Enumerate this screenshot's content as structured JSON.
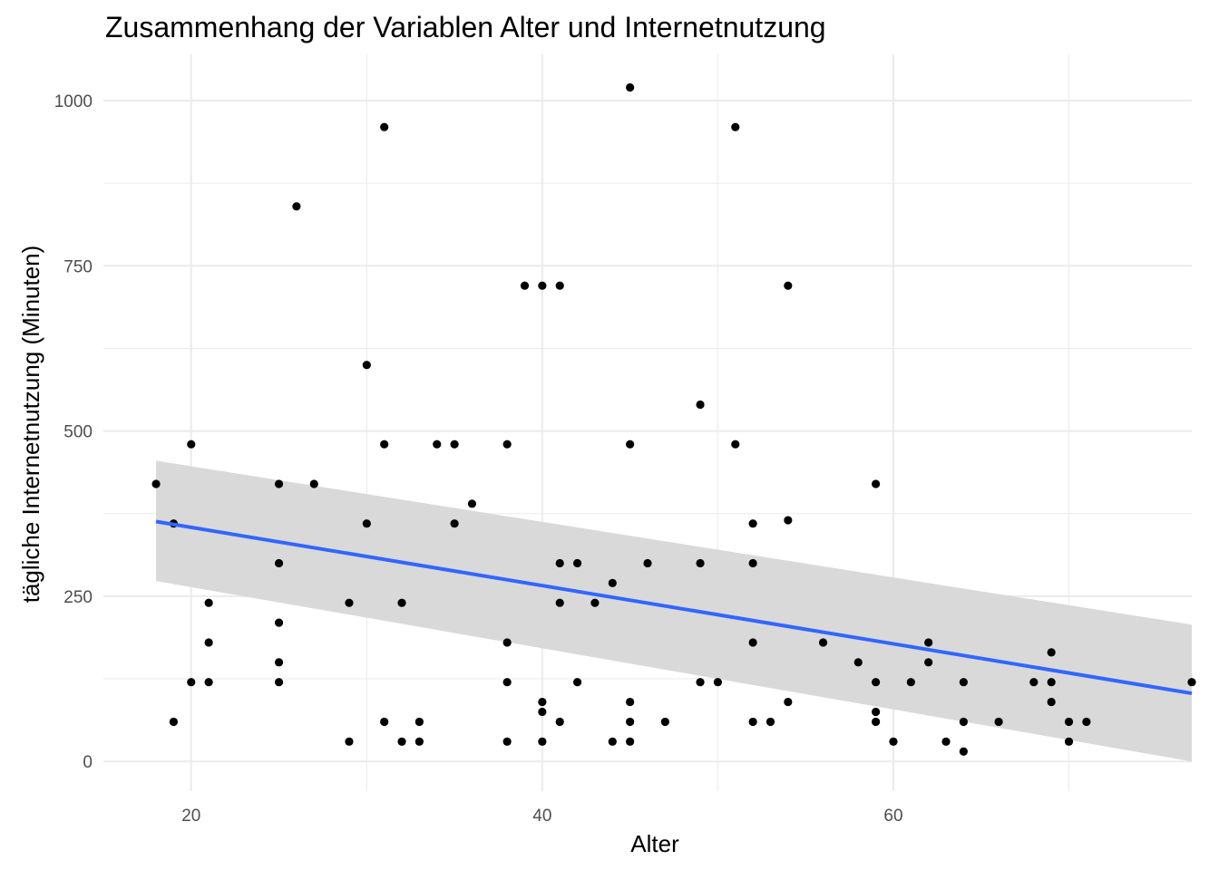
{
  "chart_data": {
    "type": "scatter",
    "title": "Zusammenhang der Variablen Alter und Internetnutzung",
    "xlabel": "Alter",
    "ylabel": "tägliche Internetnutzung (Minuten)",
    "xlim": [
      15,
      77
    ],
    "ylim": [
      -45,
      1070
    ],
    "x_ticks": [
      20,
      40,
      60
    ],
    "y_ticks": [
      0,
      250,
      500,
      750,
      1000
    ],
    "x_tick_labels": [
      "20",
      "40",
      "60"
    ],
    "y_tick_labels": [
      "0",
      "250",
      "500",
      "750",
      "1000"
    ],
    "grid": true,
    "points": [
      [
        18,
        420
      ],
      [
        19,
        360
      ],
      [
        19,
        60
      ],
      [
        20,
        480
      ],
      [
        20,
        120
      ],
      [
        21,
        240
      ],
      [
        21,
        180
      ],
      [
        21,
        120
      ],
      [
        25,
        420
      ],
      [
        25,
        300
      ],
      [
        25,
        210
      ],
      [
        25,
        150
      ],
      [
        25,
        120
      ],
      [
        26,
        840
      ],
      [
        27,
        420
      ],
      [
        29,
        240
      ],
      [
        29,
        30
      ],
      [
        30,
        600
      ],
      [
        30,
        360
      ],
      [
        31,
        960
      ],
      [
        31,
        480
      ],
      [
        31,
        60
      ],
      [
        32,
        240
      ],
      [
        32,
        30
      ],
      [
        33,
        60
      ],
      [
        33,
        30
      ],
      [
        34,
        480
      ],
      [
        35,
        480
      ],
      [
        35,
        360
      ],
      [
        36,
        390
      ],
      [
        38,
        480
      ],
      [
        38,
        180
      ],
      [
        38,
        120
      ],
      [
        38,
        30
      ],
      [
        39,
        720
      ],
      [
        40,
        720
      ],
      [
        40,
        90
      ],
      [
        40,
        75
      ],
      [
        40,
        30
      ],
      [
        41,
        720
      ],
      [
        41,
        300
      ],
      [
        41,
        240
      ],
      [
        41,
        60
      ],
      [
        42,
        300
      ],
      [
        42,
        120
      ],
      [
        43,
        240
      ],
      [
        44,
        270
      ],
      [
        44,
        30
      ],
      [
        45,
        1020
      ],
      [
        45,
        480
      ],
      [
        45,
        90
      ],
      [
        45,
        60
      ],
      [
        45,
        30
      ],
      [
        46,
        300
      ],
      [
        47,
        60
      ],
      [
        49,
        540
      ],
      [
        49,
        300
      ],
      [
        49,
        120
      ],
      [
        50,
        120
      ],
      [
        51,
        960
      ],
      [
        51,
        480
      ],
      [
        52,
        360
      ],
      [
        52,
        300
      ],
      [
        52,
        180
      ],
      [
        52,
        60
      ],
      [
        53,
        60
      ],
      [
        54,
        720
      ],
      [
        54,
        365
      ],
      [
        54,
        90
      ],
      [
        56,
        180
      ],
      [
        58,
        150
      ],
      [
        59,
        420
      ],
      [
        59,
        120
      ],
      [
        59,
        75
      ],
      [
        59,
        60
      ],
      [
        60,
        30
      ],
      [
        61,
        120
      ],
      [
        62,
        180
      ],
      [
        62,
        150
      ],
      [
        63,
        30
      ],
      [
        64,
        120
      ],
      [
        64,
        60
      ],
      [
        64,
        15
      ],
      [
        66,
        60
      ],
      [
        68,
        120
      ],
      [
        69,
        165
      ],
      [
        69,
        120
      ],
      [
        69,
        90
      ],
      [
        70,
        60
      ],
      [
        70,
        30
      ],
      [
        71,
        60
      ],
      [
        77,
        120
      ]
    ],
    "regression": {
      "x": [
        18,
        77
      ],
      "y": [
        363,
        103
      ],
      "ci_lower": [
        273,
        0
      ],
      "ci_upper": [
        455,
        207
      ],
      "line_color": "#3366ff",
      "band_color": "#d9d9d9"
    },
    "point_color": "#000000",
    "grid_color": "#ebebeb"
  }
}
